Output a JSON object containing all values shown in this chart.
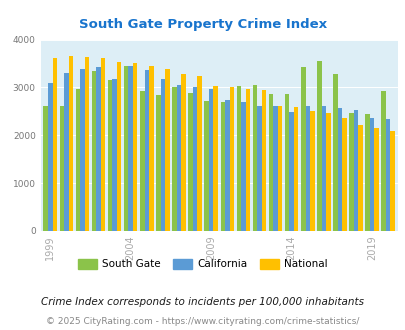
{
  "title": "South Gate Property Crime Index",
  "title_color": "#1874cd",
  "years": [
    1999,
    2000,
    2001,
    2002,
    2003,
    2004,
    2005,
    2006,
    2007,
    2008,
    2009,
    2010,
    2011,
    2012,
    2013,
    2014,
    2015,
    2016,
    2017,
    2018,
    2019,
    2020
  ],
  "south_gate": [
    2620,
    2620,
    2960,
    3340,
    3150,
    3450,
    2920,
    2840,
    3010,
    2880,
    2720,
    2700,
    3040,
    3060,
    2870,
    2870,
    3420,
    3560,
    3280,
    2470,
    2440,
    2920
  ],
  "california": [
    3100,
    3310,
    3380,
    3430,
    3170,
    3440,
    3370,
    3180,
    3060,
    3000,
    2960,
    2740,
    2700,
    2620,
    2610,
    2480,
    2620,
    2620,
    2570,
    2530,
    2370,
    2350
  ],
  "national": [
    3620,
    3660,
    3640,
    3610,
    3530,
    3510,
    3440,
    3380,
    3280,
    3230,
    3020,
    3000,
    2960,
    2950,
    2610,
    2600,
    2500,
    2470,
    2360,
    2220,
    2160,
    2090
  ],
  "bar_color_sg": "#8bc34a",
  "bar_color_ca": "#5b9bd5",
  "bar_color_na": "#ffc000",
  "bg_color": "#ddeef6",
  "ylim": [
    0,
    4000
  ],
  "yticks": [
    0,
    1000,
    2000,
    3000,
    4000
  ],
  "xlabel_ticks": [
    1999,
    2004,
    2009,
    2014,
    2019
  ],
  "legend_labels": [
    "South Gate",
    "California",
    "National"
  ],
  "footnote1": "Crime Index corresponds to incidents per 100,000 inhabitants",
  "footnote2": "© 2025 CityRating.com - https://www.cityrating.com/crime-statistics/",
  "footnote1_color": "#1a1a1a",
  "footnote2_color": "#888888",
  "footnote1_size": 7.5,
  "footnote2_size": 6.5
}
